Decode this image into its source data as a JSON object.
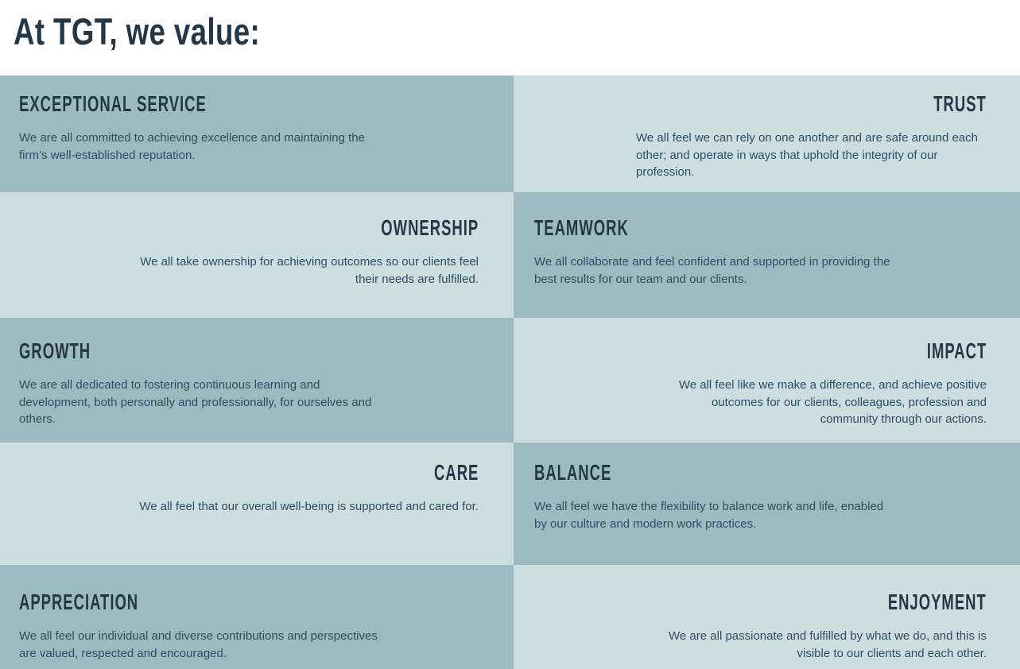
{
  "page": {
    "title": "At TGT, we value:"
  },
  "colors": {
    "page_background": "#ffffff",
    "cell_dark": "#9cbac0",
    "cell_light": "#ccdee0",
    "heading_text": "#233746",
    "body_text": "#2d4d66"
  },
  "cards": [
    {
      "name": "EXCEPTIONAL SERVICE",
      "description": "We are all committed to achieving excellence and maintaining the\nfirm’s well-established reputation."
    },
    {
      "name": "TRUST",
      "description": "We all feel we can rely on one another and are safe around each\nother; and operate in ways that uphold the integrity of our\nprofession."
    },
    {
      "name": "OWNERSHIP",
      "description": "We all take ownership for achieving outcomes so our clients feel\ntheir needs are fulfilled."
    },
    {
      "name": "TEAMWORK",
      "description": "We all collaborate and feel confident and supported in providing the\nbest results for our team and our clients."
    },
    {
      "name": "GROWTH",
      "description": "We are all dedicated to fostering continuous learning and\ndevelopment, both personally and professionally, for ourselves and\nothers."
    },
    {
      "name": "IMPACT",
      "description": "We all feel like we make a difference, and achieve positive\noutcomes for our clients, colleagues, profession and\ncommunity through our actions."
    },
    {
      "name": "CARE",
      "description": "We all feel that our overall well-being is supported and cared for."
    },
    {
      "name": "BALANCE",
      "description": "We all feel we have the flexibility to balance work and life, enabled\nby our culture and modern work practices."
    },
    {
      "name": "APPRECIATION",
      "description": "We all feel our individual and diverse contributions and perspectives\nare valued, respected and encouraged."
    },
    {
      "name": "ENJOYMENT",
      "description": "We are all passionate and fulfilled by what we do, and this is\nvisible to our clients and each other."
    }
  ]
}
